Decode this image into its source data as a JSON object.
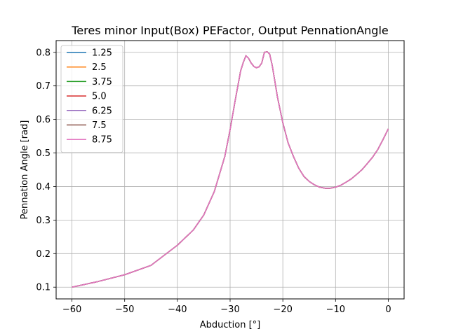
{
  "chart_data": {
    "type": "line",
    "title": "Teres minor Input(Box) PEFactor, Output PennationAngle",
    "xlabel": "Abduction [°]",
    "ylabel": "Pennation Angle [rad]",
    "xlim": [
      -63,
      3
    ],
    "ylim": [
      0.065,
      0.835
    ],
    "xticks": [
      -60,
      -50,
      -40,
      -30,
      -20,
      -10,
      0
    ],
    "xtick_labels": [
      "−60",
      "−50",
      "−40",
      "−30",
      "−20",
      "−10",
      "0"
    ],
    "yticks": [
      0.1,
      0.2,
      0.3,
      0.4,
      0.5,
      0.6,
      0.7,
      0.8
    ],
    "ytick_labels": [
      "0.1",
      "0.2",
      "0.3",
      "0.4",
      "0.5",
      "0.6",
      "0.7",
      "0.8"
    ],
    "grid": true,
    "legend_position": "top-left",
    "colors": [
      "#1f77b4",
      "#ff7f0e",
      "#2ca02c",
      "#d62728",
      "#9467bd",
      "#8c564b",
      "#e377c2"
    ],
    "x": [
      -60,
      -55,
      -50,
      -45,
      -40,
      -37,
      -35,
      -33,
      -31,
      -30,
      -29,
      -28,
      -27.5,
      -27,
      -26.5,
      -26,
      -25.5,
      -25,
      -24.5,
      -24,
      -23.5,
      -23,
      -22.5,
      -22,
      -21,
      -20,
      -19,
      -18,
      -17,
      -16,
      -15,
      -14,
      -13,
      -12,
      -11,
      -10,
      -9,
      -8,
      -7,
      -6,
      -5,
      -4,
      -3,
      -2,
      -1,
      0
    ],
    "series": [
      {
        "name": "1.25",
        "values": [
          0.1,
          0.117,
          0.137,
          0.165,
          0.225,
          0.27,
          0.315,
          0.385,
          0.49,
          0.57,
          0.66,
          0.745,
          0.77,
          0.79,
          0.782,
          0.768,
          0.758,
          0.754,
          0.757,
          0.768,
          0.8,
          0.802,
          0.795,
          0.76,
          0.665,
          0.59,
          0.53,
          0.49,
          0.455,
          0.43,
          0.415,
          0.405,
          0.398,
          0.395,
          0.395,
          0.398,
          0.404,
          0.413,
          0.423,
          0.436,
          0.45,
          0.468,
          0.487,
          0.51,
          0.54,
          0.572
        ]
      },
      {
        "name": "2.5",
        "values": [
          0.1,
          0.117,
          0.137,
          0.165,
          0.225,
          0.27,
          0.315,
          0.385,
          0.49,
          0.57,
          0.66,
          0.745,
          0.77,
          0.79,
          0.782,
          0.768,
          0.758,
          0.754,
          0.757,
          0.768,
          0.8,
          0.802,
          0.795,
          0.76,
          0.665,
          0.59,
          0.53,
          0.49,
          0.455,
          0.43,
          0.415,
          0.405,
          0.398,
          0.395,
          0.395,
          0.398,
          0.404,
          0.413,
          0.423,
          0.436,
          0.45,
          0.468,
          0.487,
          0.51,
          0.54,
          0.572
        ]
      },
      {
        "name": "3.75",
        "values": [
          0.1,
          0.117,
          0.137,
          0.165,
          0.225,
          0.27,
          0.315,
          0.385,
          0.49,
          0.57,
          0.66,
          0.745,
          0.77,
          0.79,
          0.782,
          0.768,
          0.758,
          0.754,
          0.757,
          0.768,
          0.8,
          0.802,
          0.795,
          0.76,
          0.665,
          0.59,
          0.53,
          0.49,
          0.455,
          0.43,
          0.415,
          0.405,
          0.398,
          0.395,
          0.395,
          0.398,
          0.404,
          0.413,
          0.423,
          0.436,
          0.45,
          0.468,
          0.487,
          0.51,
          0.54,
          0.572
        ]
      },
      {
        "name": "5.0",
        "values": [
          0.1,
          0.117,
          0.137,
          0.165,
          0.225,
          0.27,
          0.315,
          0.385,
          0.49,
          0.57,
          0.66,
          0.745,
          0.77,
          0.79,
          0.782,
          0.768,
          0.758,
          0.754,
          0.757,
          0.768,
          0.8,
          0.802,
          0.795,
          0.76,
          0.665,
          0.59,
          0.53,
          0.49,
          0.455,
          0.43,
          0.415,
          0.405,
          0.398,
          0.395,
          0.395,
          0.398,
          0.404,
          0.413,
          0.423,
          0.436,
          0.45,
          0.468,
          0.487,
          0.51,
          0.54,
          0.572
        ]
      },
      {
        "name": "6.25",
        "values": [
          0.1,
          0.117,
          0.137,
          0.165,
          0.225,
          0.27,
          0.315,
          0.385,
          0.49,
          0.57,
          0.66,
          0.745,
          0.77,
          0.79,
          0.782,
          0.768,
          0.758,
          0.754,
          0.757,
          0.768,
          0.8,
          0.802,
          0.795,
          0.76,
          0.665,
          0.59,
          0.53,
          0.49,
          0.455,
          0.43,
          0.415,
          0.405,
          0.398,
          0.395,
          0.395,
          0.398,
          0.404,
          0.413,
          0.423,
          0.436,
          0.45,
          0.468,
          0.487,
          0.51,
          0.54,
          0.572
        ]
      },
      {
        "name": "7.5",
        "values": [
          0.1,
          0.117,
          0.137,
          0.165,
          0.225,
          0.27,
          0.315,
          0.385,
          0.49,
          0.57,
          0.66,
          0.745,
          0.77,
          0.79,
          0.782,
          0.768,
          0.758,
          0.754,
          0.757,
          0.768,
          0.8,
          0.802,
          0.795,
          0.76,
          0.665,
          0.59,
          0.53,
          0.49,
          0.455,
          0.43,
          0.415,
          0.405,
          0.398,
          0.395,
          0.395,
          0.398,
          0.404,
          0.413,
          0.423,
          0.436,
          0.45,
          0.468,
          0.487,
          0.51,
          0.54,
          0.572
        ]
      },
      {
        "name": "8.75",
        "values": [
          0.1,
          0.117,
          0.137,
          0.165,
          0.225,
          0.27,
          0.315,
          0.385,
          0.49,
          0.57,
          0.66,
          0.745,
          0.77,
          0.79,
          0.782,
          0.768,
          0.758,
          0.754,
          0.757,
          0.768,
          0.8,
          0.802,
          0.795,
          0.76,
          0.665,
          0.59,
          0.53,
          0.49,
          0.455,
          0.43,
          0.415,
          0.405,
          0.398,
          0.395,
          0.395,
          0.398,
          0.404,
          0.413,
          0.423,
          0.436,
          0.45,
          0.468,
          0.487,
          0.51,
          0.54,
          0.572
        ]
      }
    ]
  }
}
